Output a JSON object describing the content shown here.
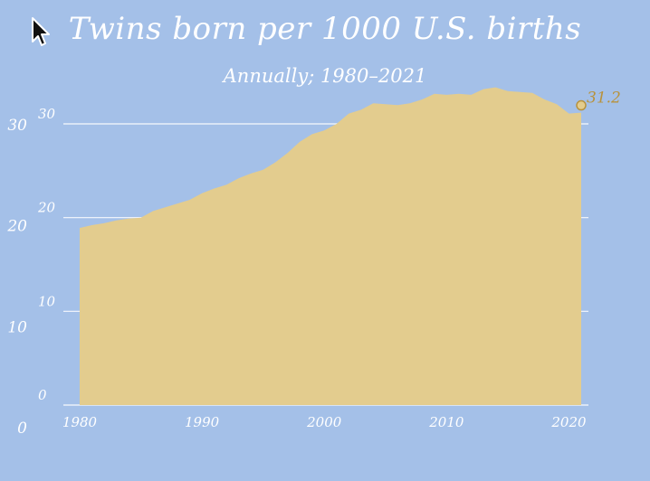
{
  "chart_data": {
    "type": "area",
    "title": "Twins born per 1000 U.S. births",
    "subtitle": "Annually; 1980–2021",
    "x": [
      1980,
      1981,
      1982,
      1983,
      1984,
      1985,
      1986,
      1987,
      1988,
      1989,
      1990,
      1991,
      1992,
      1993,
      1994,
      1995,
      1996,
      1997,
      1998,
      1999,
      2000,
      2001,
      2002,
      2003,
      2004,
      2005,
      2006,
      2007,
      2008,
      2009,
      2010,
      2011,
      2012,
      2013,
      2014,
      2015,
      2016,
      2017,
      2018,
      2019,
      2020,
      2021
    ],
    "values": [
      18.9,
      19.2,
      19.4,
      19.7,
      19.9,
      20.0,
      20.7,
      21.1,
      21.5,
      21.9,
      22.6,
      23.1,
      23.5,
      24.2,
      24.7,
      25.1,
      25.9,
      26.9,
      28.1,
      28.9,
      29.3,
      30.0,
      31.1,
      31.5,
      32.2,
      32.1,
      32.0,
      32.2,
      32.6,
      33.2,
      33.1,
      33.2,
      33.1,
      33.7,
      33.9,
      33.5,
      33.4,
      33.3,
      32.6,
      32.1,
      31.1,
      31.2
    ],
    "last_label": "31.2",
    "xticks": [
      "1980",
      "1990",
      "2000",
      "2010",
      "2020"
    ],
    "yticks": [
      "0",
      "10",
      "20",
      "30"
    ],
    "ylim": [
      0,
      30
    ],
    "grid": true,
    "colors": {
      "background": "#a4c0e8",
      "area": "#e3cc8e",
      "accent": "#b8923c",
      "text": "#ffffff"
    }
  }
}
